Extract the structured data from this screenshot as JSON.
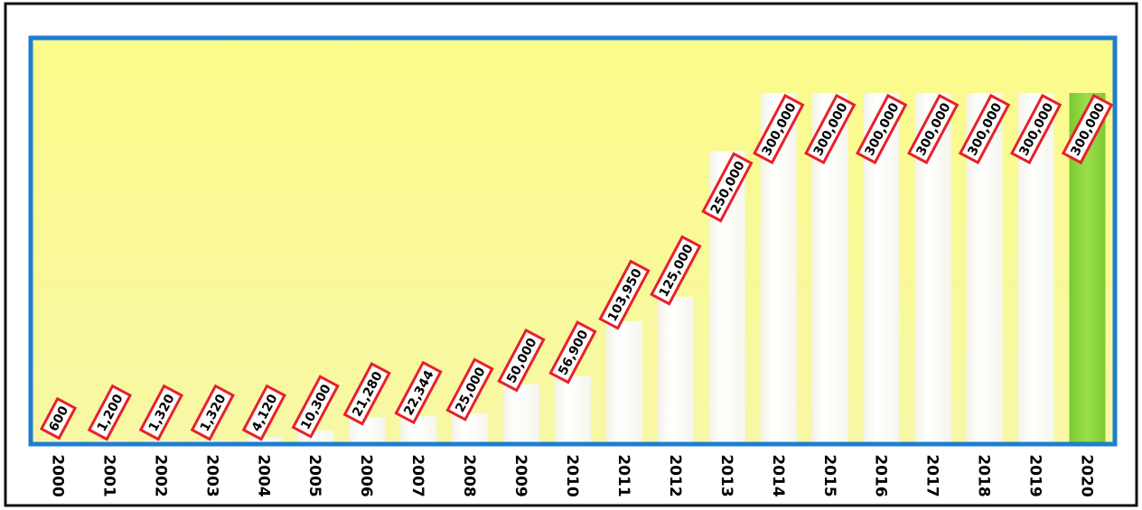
{
  "chart_data": {
    "type": "bar",
    "categories": [
      "2000",
      "2001",
      "2002",
      "2003",
      "2004",
      "2005",
      "2006",
      "2007",
      "2008",
      "2009",
      "2010",
      "2011",
      "2012",
      "2013",
      "2014",
      "2015",
      "2016",
      "2017",
      "2018",
      "2019",
      "2020"
    ],
    "values": [
      600,
      1200,
      1320,
      1320,
      4120,
      10300,
      21280,
      22344,
      25000,
      50000,
      56900,
      103950,
      125000,
      250000,
      300000,
      300000,
      300000,
      300000,
      300000,
      300000,
      300000
    ],
    "labels": [
      "600",
      "1,200",
      "1,320",
      "1,320",
      "4,120",
      "10,300",
      "21,280",
      "22,344",
      "25,000",
      "50,000",
      "56,900",
      "103,950",
      "125,000",
      "250,000",
      "300,000",
      "300,000",
      "300,000",
      "300,000",
      "300,000",
      "300,000",
      "300,000"
    ],
    "ylim": [
      0,
      350000
    ],
    "grid": false,
    "legend": "none",
    "colors": {
      "plot_background": "#fbfa8e",
      "plot_border": "#1e7fd0",
      "bar": "#ffffff",
      "highlight_bar": "#8fd43c",
      "label_box_border": "#e8202a",
      "outer_border": "#111111"
    },
    "highlight_index": 20
  }
}
